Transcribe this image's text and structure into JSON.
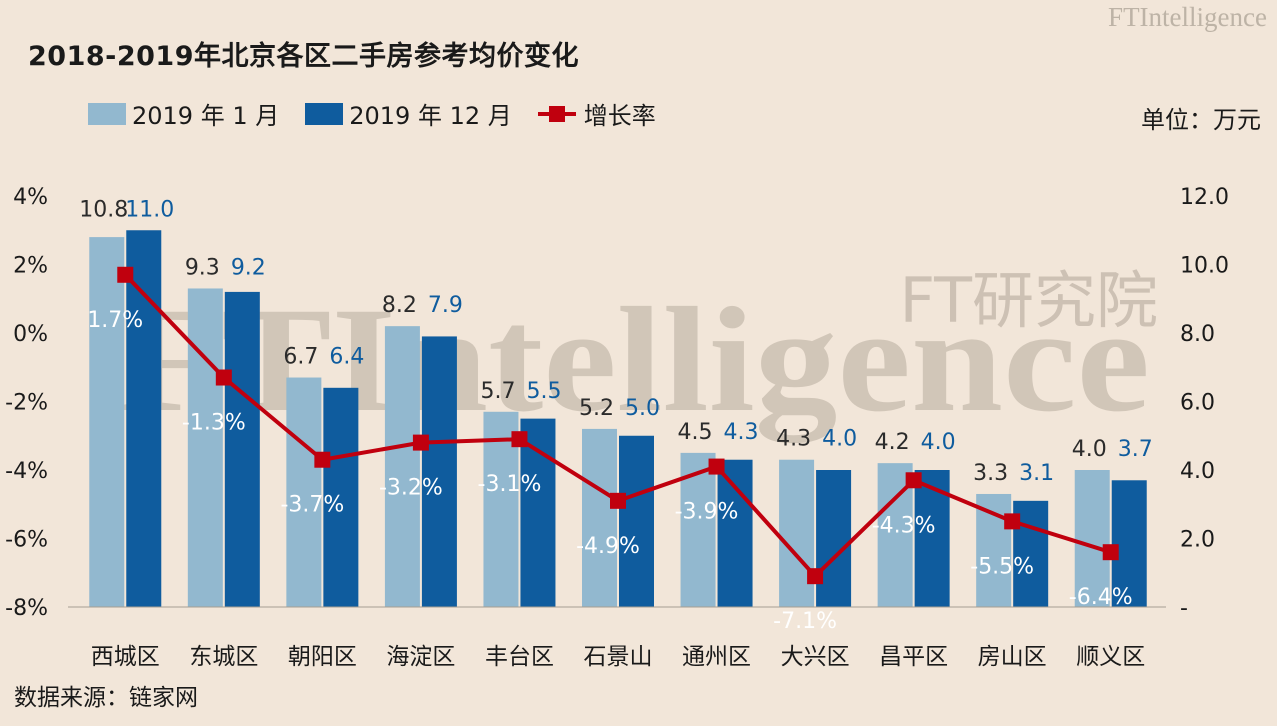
{
  "title": "2018-2019年北京各区二手房参考均价变化",
  "brand": "FTIntelligence",
  "brand_sub": "FT研究院",
  "unit": "单位：万元",
  "source": "数据来源：链家网",
  "colors": {
    "background": "#f2e6d9",
    "series_jan": "#92b8cf",
    "series_dec": "#0f5c9e",
    "growth_line": "#c0000e",
    "dec_label": "#0f5c9e"
  },
  "legend": {
    "jan": "2019 年 1 月",
    "dec": "2019 年 12 月",
    "growth": "增长率"
  },
  "chart_data": {
    "type": "bar",
    "categories": [
      "西城区",
      "东城区",
      "朝阳区",
      "海淀区",
      "丰台区",
      "石景山",
      "通州区",
      "大兴区",
      "昌平区",
      "房山区",
      "顺义区"
    ],
    "series": [
      {
        "name": "2019 年 1 月",
        "axis": "right",
        "values": [
          10.8,
          9.3,
          6.7,
          8.2,
          5.7,
          5.2,
          4.5,
          4.3,
          4.2,
          3.3,
          4.0
        ]
      },
      {
        "name": "2019 年 12 月",
        "axis": "right",
        "values": [
          11.0,
          9.2,
          6.4,
          7.9,
          5.5,
          5.0,
          4.3,
          4.0,
          4.0,
          3.1,
          3.7
        ]
      },
      {
        "name": "增长率",
        "type": "line",
        "axis": "left",
        "values": [
          1.7,
          -1.3,
          -3.7,
          -3.2,
          -3.1,
          -4.9,
          -3.9,
          -7.1,
          -4.3,
          -5.5,
          -6.4
        ],
        "labels": [
          "1.7%",
          "-1.3%",
          "-3.7%",
          "-3.2%",
          "-3.1%",
          "-4.9%",
          "-3.9%",
          "-7.1%",
          "-4.3%",
          "-5.5%",
          "-6.4%"
        ]
      }
    ],
    "left_axis": {
      "range": [
        -8,
        4
      ],
      "ticks": [
        4,
        2,
        0,
        -2,
        -4,
        -6,
        -8
      ],
      "tick_labels": [
        "4%",
        "2%",
        "0%",
        "-2%",
        "-4%",
        "-6%",
        "-8%"
      ]
    },
    "right_axis": {
      "range": [
        0,
        12
      ],
      "ticks": [
        12,
        10,
        8,
        6,
        4,
        2,
        0
      ],
      "tick_labels": [
        "12.0",
        "10.0",
        "8.0",
        "6.0",
        "4.0",
        "2.0",
        "-"
      ]
    },
    "grid": false,
    "legend_position": "top-left"
  }
}
